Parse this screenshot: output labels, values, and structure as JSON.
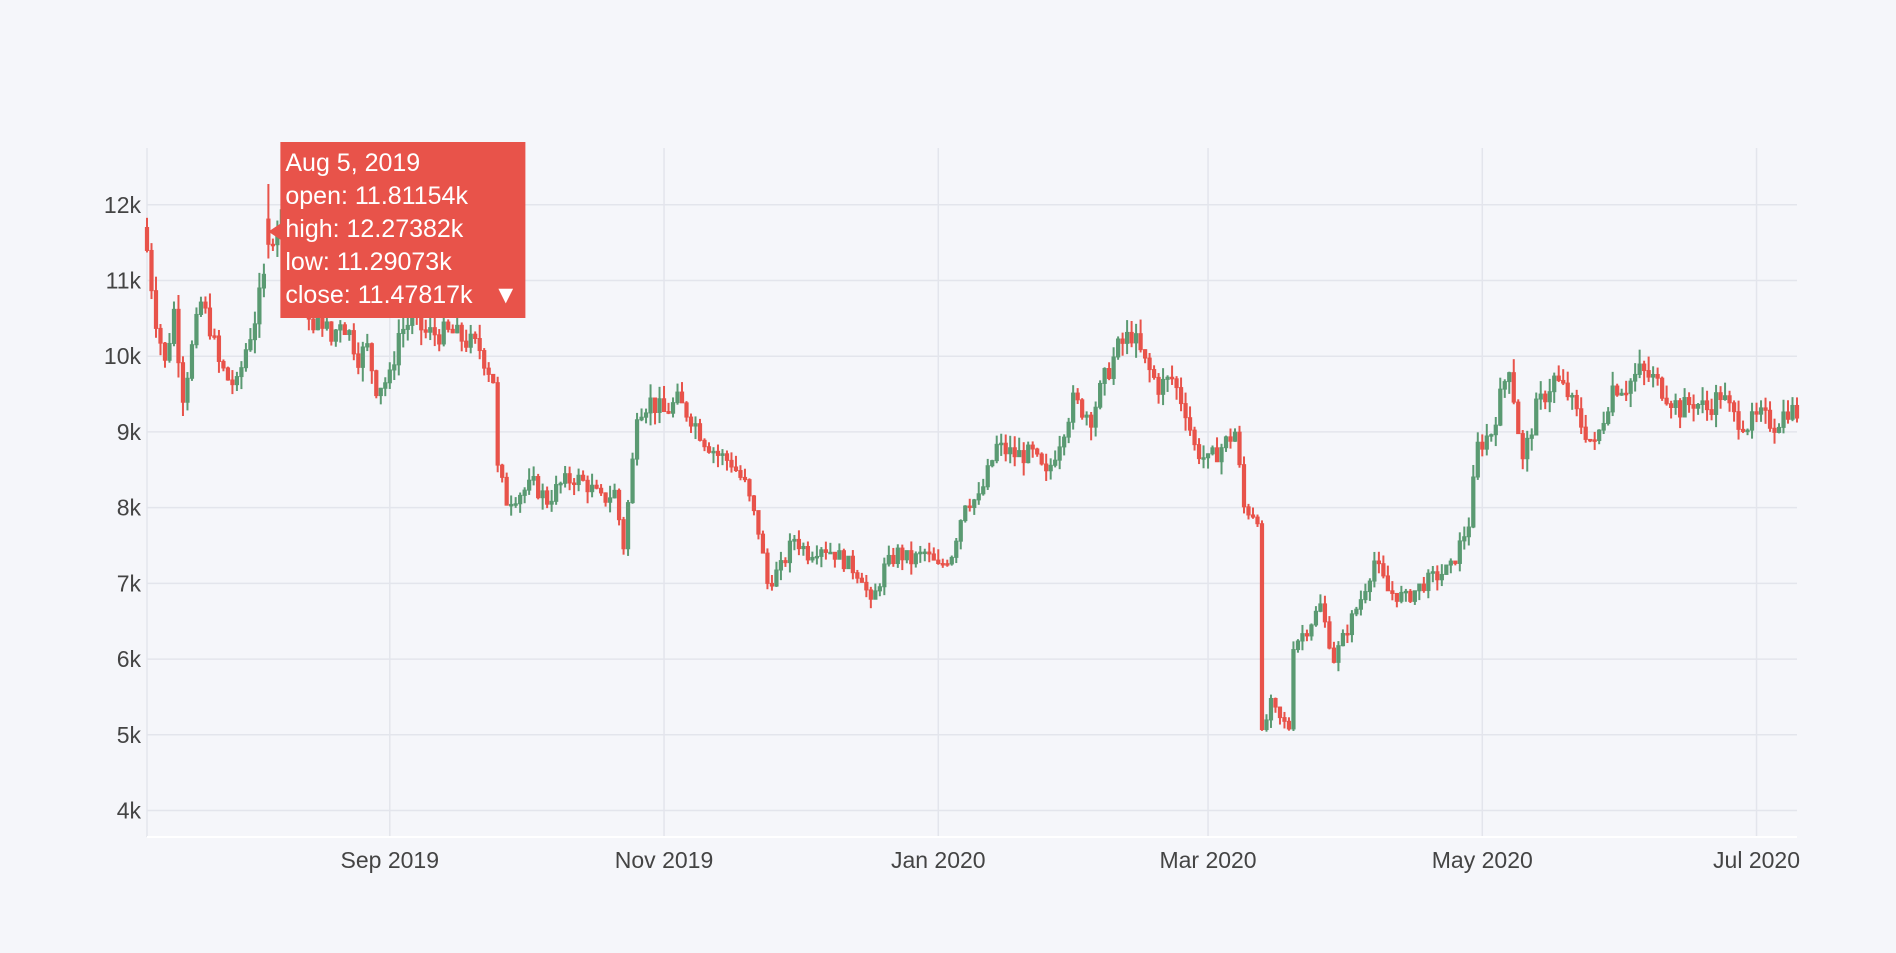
{
  "chart_data": {
    "type": "candlestick",
    "x_ticks": [
      "Sep 2019",
      "Nov 2019",
      "Jan 2020",
      "Mar 2020",
      "May 2020",
      "Jul 2020"
    ],
    "x_tick_dates": [
      "2019-09-01",
      "2019-11-01",
      "2020-01-01",
      "2020-03-01",
      "2020-05-01",
      "2020-07-01"
    ],
    "y_ticks": [
      "4k",
      "5k",
      "6k",
      "7k",
      "8k",
      "9k",
      "10k",
      "11k",
      "12k"
    ],
    "x_range": [
      "2019-07-09",
      "2020-07-10"
    ],
    "y_range": [
      3650,
      12750
    ],
    "grid": true,
    "colors": {
      "increasing": "#5a9a72",
      "decreasing": "#e8534a",
      "grid": "#e3e5ec",
      "background": "#f5f6fa"
    },
    "close_series": [
      [
        "2019-07-09",
        11400
      ],
      [
        "2019-07-11",
        10500
      ],
      [
        "2019-07-13",
        9900
      ],
      [
        "2019-07-15",
        10600
      ],
      [
        "2019-07-17",
        9500
      ],
      [
        "2019-07-19",
        10100
      ],
      [
        "2019-07-21",
        10700
      ],
      [
        "2019-07-23",
        10400
      ],
      [
        "2019-07-25",
        9900
      ],
      [
        "2019-07-27",
        9700
      ],
      [
        "2019-07-29",
        9600
      ],
      [
        "2019-07-31",
        10100
      ],
      [
        "2019-08-02",
        10500
      ],
      [
        "2019-08-04",
        11000
      ],
      [
        "2019-08-05",
        11478
      ],
      [
        "2019-08-07",
        11800
      ],
      [
        "2019-08-09",
        11900
      ],
      [
        "2019-08-11",
        11300
      ],
      [
        "2019-08-13",
        10900
      ],
      [
        "2019-08-15",
        10300
      ],
      [
        "2019-08-17",
        10500
      ],
      [
        "2019-08-19",
        10200
      ],
      [
        "2019-08-21",
        10500
      ],
      [
        "2019-08-23",
        10300
      ],
      [
        "2019-08-25",
        10000
      ],
      [
        "2019-08-27",
        10100
      ],
      [
        "2019-08-29",
        9600
      ],
      [
        "2019-09-01",
        9700
      ],
      [
        "2019-09-03",
        10300
      ],
      [
        "2019-09-06",
        10500
      ],
      [
        "2019-09-09",
        10300
      ],
      [
        "2019-09-12",
        10300
      ],
      [
        "2019-09-15",
        10300
      ],
      [
        "2019-09-18",
        10200
      ],
      [
        "2019-09-21",
        10100
      ],
      [
        "2019-09-24",
        9700
      ],
      [
        "2019-09-25",
        8500
      ],
      [
        "2019-09-27",
        8100
      ],
      [
        "2019-09-30",
        8200
      ],
      [
        "2019-10-03",
        8300
      ],
      [
        "2019-10-06",
        8100
      ],
      [
        "2019-10-09",
        8300
      ],
      [
        "2019-10-12",
        8400
      ],
      [
        "2019-10-15",
        8300
      ],
      [
        "2019-10-18",
        8100
      ],
      [
        "2019-10-21",
        8200
      ],
      [
        "2019-10-23",
        7500
      ],
      [
        "2019-10-25",
        8600
      ],
      [
        "2019-10-26",
        9300
      ],
      [
        "2019-10-29",
        9400
      ],
      [
        "2019-11-01",
        9250
      ],
      [
        "2019-11-04",
        9400
      ],
      [
        "2019-11-07",
        9200
      ],
      [
        "2019-11-10",
        8900
      ],
      [
        "2019-11-13",
        8700
      ],
      [
        "2019-11-16",
        8600
      ],
      [
        "2019-11-19",
        8300
      ],
      [
        "2019-11-22",
        7700
      ],
      [
        "2019-11-24",
        7000
      ],
      [
        "2019-11-27",
        7200
      ],
      [
        "2019-11-30",
        7600
      ],
      [
        "2019-12-03",
        7400
      ],
      [
        "2019-12-06",
        7500
      ],
      [
        "2019-12-09",
        7400
      ],
      [
        "2019-12-12",
        7250
      ],
      [
        "2019-12-15",
        7100
      ],
      [
        "2019-12-17",
        6700
      ],
      [
        "2019-12-20",
        7200
      ],
      [
        "2019-12-23",
        7400
      ],
      [
        "2019-12-26",
        7300
      ],
      [
        "2019-12-29",
        7400
      ],
      [
        "2020-01-01",
        7200
      ],
      [
        "2020-01-04",
        7400
      ],
      [
        "2020-01-07",
        8100
      ],
      [
        "2020-01-10",
        8100
      ],
      [
        "2020-01-14",
        8800
      ],
      [
        "2020-01-18",
        8700
      ],
      [
        "2020-01-22",
        8700
      ],
      [
        "2020-01-25",
        8400
      ],
      [
        "2020-01-28",
        8900
      ],
      [
        "2020-01-31",
        9400
      ],
      [
        "2020-02-04",
        9200
      ],
      [
        "2020-02-07",
        9700
      ],
      [
        "2020-02-10",
        10100
      ],
      [
        "2020-02-13",
        10300
      ],
      [
        "2020-02-16",
        9900
      ],
      [
        "2020-02-19",
        9600
      ],
      [
        "2020-02-22",
        9700
      ],
      [
        "2020-02-25",
        9300
      ],
      [
        "2020-02-27",
        8800
      ],
      [
        "2020-03-01",
        8600
      ],
      [
        "2020-03-04",
        8800
      ],
      [
        "2020-03-07",
        9000
      ],
      [
        "2020-03-09",
        8000
      ],
      [
        "2020-03-12",
        7900
      ],
      [
        "2020-03-13",
        5000
      ],
      [
        "2020-03-15",
        5400
      ],
      [
        "2020-03-17",
        5200
      ],
      [
        "2020-03-19",
        5100
      ],
      [
        "2020-03-20",
        6200
      ],
      [
        "2020-03-23",
        6400
      ],
      [
        "2020-03-26",
        6700
      ],
      [
        "2020-03-29",
        6000
      ],
      [
        "2020-04-01",
        6400
      ],
      [
        "2020-04-04",
        6800
      ],
      [
        "2020-04-07",
        7300
      ],
      [
        "2020-04-10",
        6900
      ],
      [
        "2020-04-14",
        6800
      ],
      [
        "2020-04-18",
        7000
      ],
      [
        "2020-04-21",
        7100
      ],
      [
        "2020-04-24",
        7200
      ],
      [
        "2020-04-28",
        7800
      ],
      [
        "2020-04-30",
        8800
      ],
      [
        "2020-05-03",
        9000
      ],
      [
        "2020-05-07",
        9900
      ],
      [
        "2020-05-10",
        8600
      ],
      [
        "2020-05-13",
        9300
      ],
      [
        "2020-05-17",
        9700
      ],
      [
        "2020-05-20",
        9500
      ],
      [
        "2020-05-23",
        9100
      ],
      [
        "2020-05-26",
        8800
      ],
      [
        "2020-05-30",
        9600
      ],
      [
        "2020-06-02",
        9600
      ],
      [
        "2020-06-05",
        9800
      ],
      [
        "2020-06-08",
        9700
      ],
      [
        "2020-06-11",
        9500
      ],
      [
        "2020-06-14",
        9300
      ],
      [
        "2020-06-17",
        9400
      ],
      [
        "2020-06-20",
        9300
      ],
      [
        "2020-06-23",
        9500
      ],
      [
        "2020-06-26",
        9200
      ],
      [
        "2020-06-29",
        9100
      ],
      [
        "2020-07-02",
        9200
      ],
      [
        "2020-07-05",
        9100
      ],
      [
        "2020-07-08",
        9300
      ],
      [
        "2020-07-10",
        9250
      ]
    ]
  },
  "tooltip": {
    "date": "Aug 5, 2019",
    "open": "open: 11.81154k",
    "high": "high: 12.27382k",
    "low": "low: 11.29073k",
    "close": "close: 11.47817k",
    "close_marker": "▼",
    "values": {
      "open": 11811.54,
      "high": 12273.82,
      "low": 11290.73,
      "close": 11478.17
    },
    "color": "#e8534a"
  }
}
